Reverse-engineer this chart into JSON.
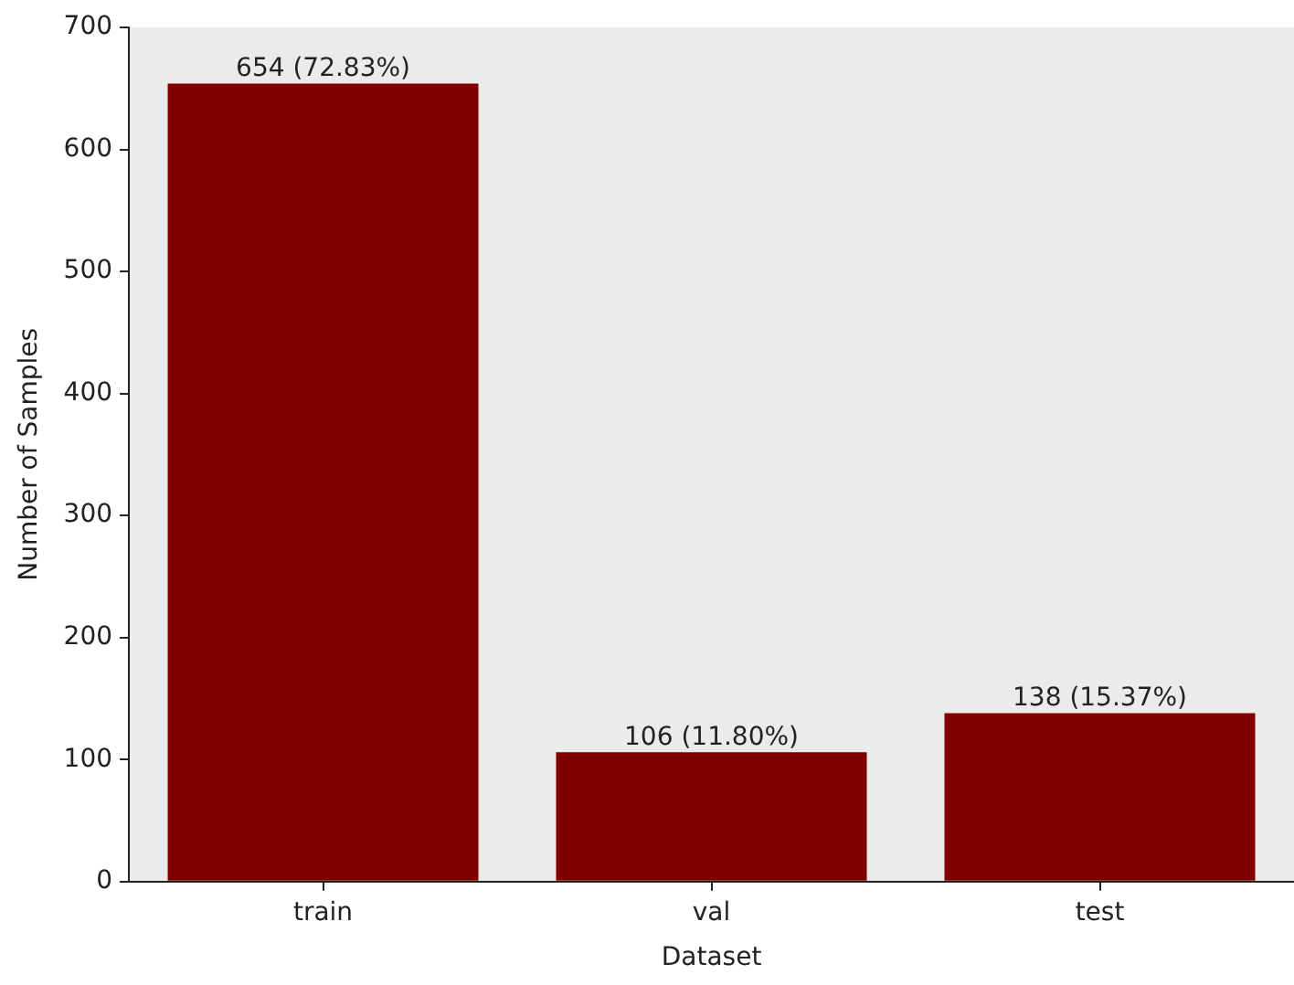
{
  "chart_data": {
    "type": "bar",
    "xlabel": "Dataset",
    "ylabel": "Number of Samples",
    "categories": [
      "train",
      "val",
      "test"
    ],
    "values": [
      654,
      106,
      138
    ],
    "color": "#800000",
    "value_labels": [
      "654 (72.83%)",
      "106 (11.80%)",
      "138 (15.37%)"
    ],
    "ylim": [
      0,
      700
    ],
    "yticks": [
      0,
      100,
      200,
      300,
      400,
      500,
      600,
      700
    ],
    "grid": false,
    "legend": false
  }
}
